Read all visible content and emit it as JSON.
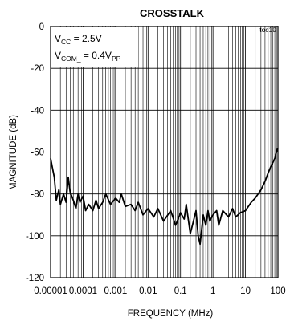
{
  "chart_data": {
    "type": "line",
    "title": "CROSSTALK",
    "tag": "toc10",
    "xlabel": "FREQUENCY (MHz)",
    "ylabel": "MAGNITUDE (dB)",
    "x_scale": "log",
    "xlim": [
      1e-05,
      100
    ],
    "ylim": [
      -120,
      0
    ],
    "x_ticks": [
      1e-05,
      0.0001,
      0.001,
      0.01,
      0.1,
      1,
      10,
      100
    ],
    "x_tick_labels": [
      "0.00001",
      "0.0001",
      "0.001",
      "0.01",
      "0.1",
      "1",
      "10",
      "100"
    ],
    "y_ticks": [
      0,
      -20,
      -40,
      -60,
      -80,
      -100,
      -120
    ],
    "y_tick_labels": [
      "0",
      "-20",
      "-40",
      "-60",
      "-80",
      "-100",
      "-120"
    ],
    "grid": true,
    "annotations": [
      {
        "base": "V",
        "sub": "CC",
        "rest": " = 2.5V",
        "rest_sub": ""
      },
      {
        "base": "V",
        "sub": "COM_",
        "rest": " = 0.4V",
        "rest_sub": "PP"
      }
    ],
    "series": [
      {
        "color": "#000000",
        "x": [
          1e-05,
          1.15e-05,
          1.3e-05,
          1.5e-05,
          1.8e-05,
          2e-05,
          2.5e-05,
          3e-05,
          3.5e-05,
          4e-05,
          5e-05,
          6e-05,
          7e-05,
          8e-05,
          0.0001,
          0.00012,
          0.00015,
          0.0002,
          0.00025,
          0.0003,
          0.0004,
          0.0005,
          0.0007,
          0.001,
          0.0013,
          0.0015,
          0.002,
          0.003,
          0.004,
          0.005,
          0.007,
          0.01,
          0.015,
          0.02,
          0.03,
          0.05,
          0.07,
          0.1,
          0.13,
          0.15,
          0.2,
          0.25,
          0.3,
          0.35,
          0.4,
          0.5,
          0.6,
          0.7,
          0.8,
          1,
          1.3,
          1.5,
          2,
          3,
          4,
          5,
          7,
          10,
          15,
          20,
          30,
          40,
          50,
          60,
          70,
          80,
          90,
          100
        ],
        "y": [
          -63,
          -68,
          -72,
          -83,
          -78,
          -85,
          -80,
          -84,
          -72,
          -79,
          -83,
          -87,
          -80,
          -84,
          -81,
          -88,
          -85,
          -88,
          -83,
          -87,
          -84,
          -80,
          -85,
          -82,
          -84,
          -80,
          -86,
          -85,
          -88,
          -84,
          -90,
          -87,
          -91,
          -87,
          -93,
          -88,
          -95,
          -89,
          -92,
          -85,
          -99,
          -93,
          -88,
          -100,
          -104,
          -90,
          -95,
          -88,
          -93,
          -90,
          -88,
          -95,
          -88,
          -91,
          -87,
          -91,
          -89,
          -88,
          -84,
          -82,
          -78,
          -74,
          -70,
          -67,
          -65,
          -63,
          -60,
          -58
        ]
      }
    ]
  }
}
